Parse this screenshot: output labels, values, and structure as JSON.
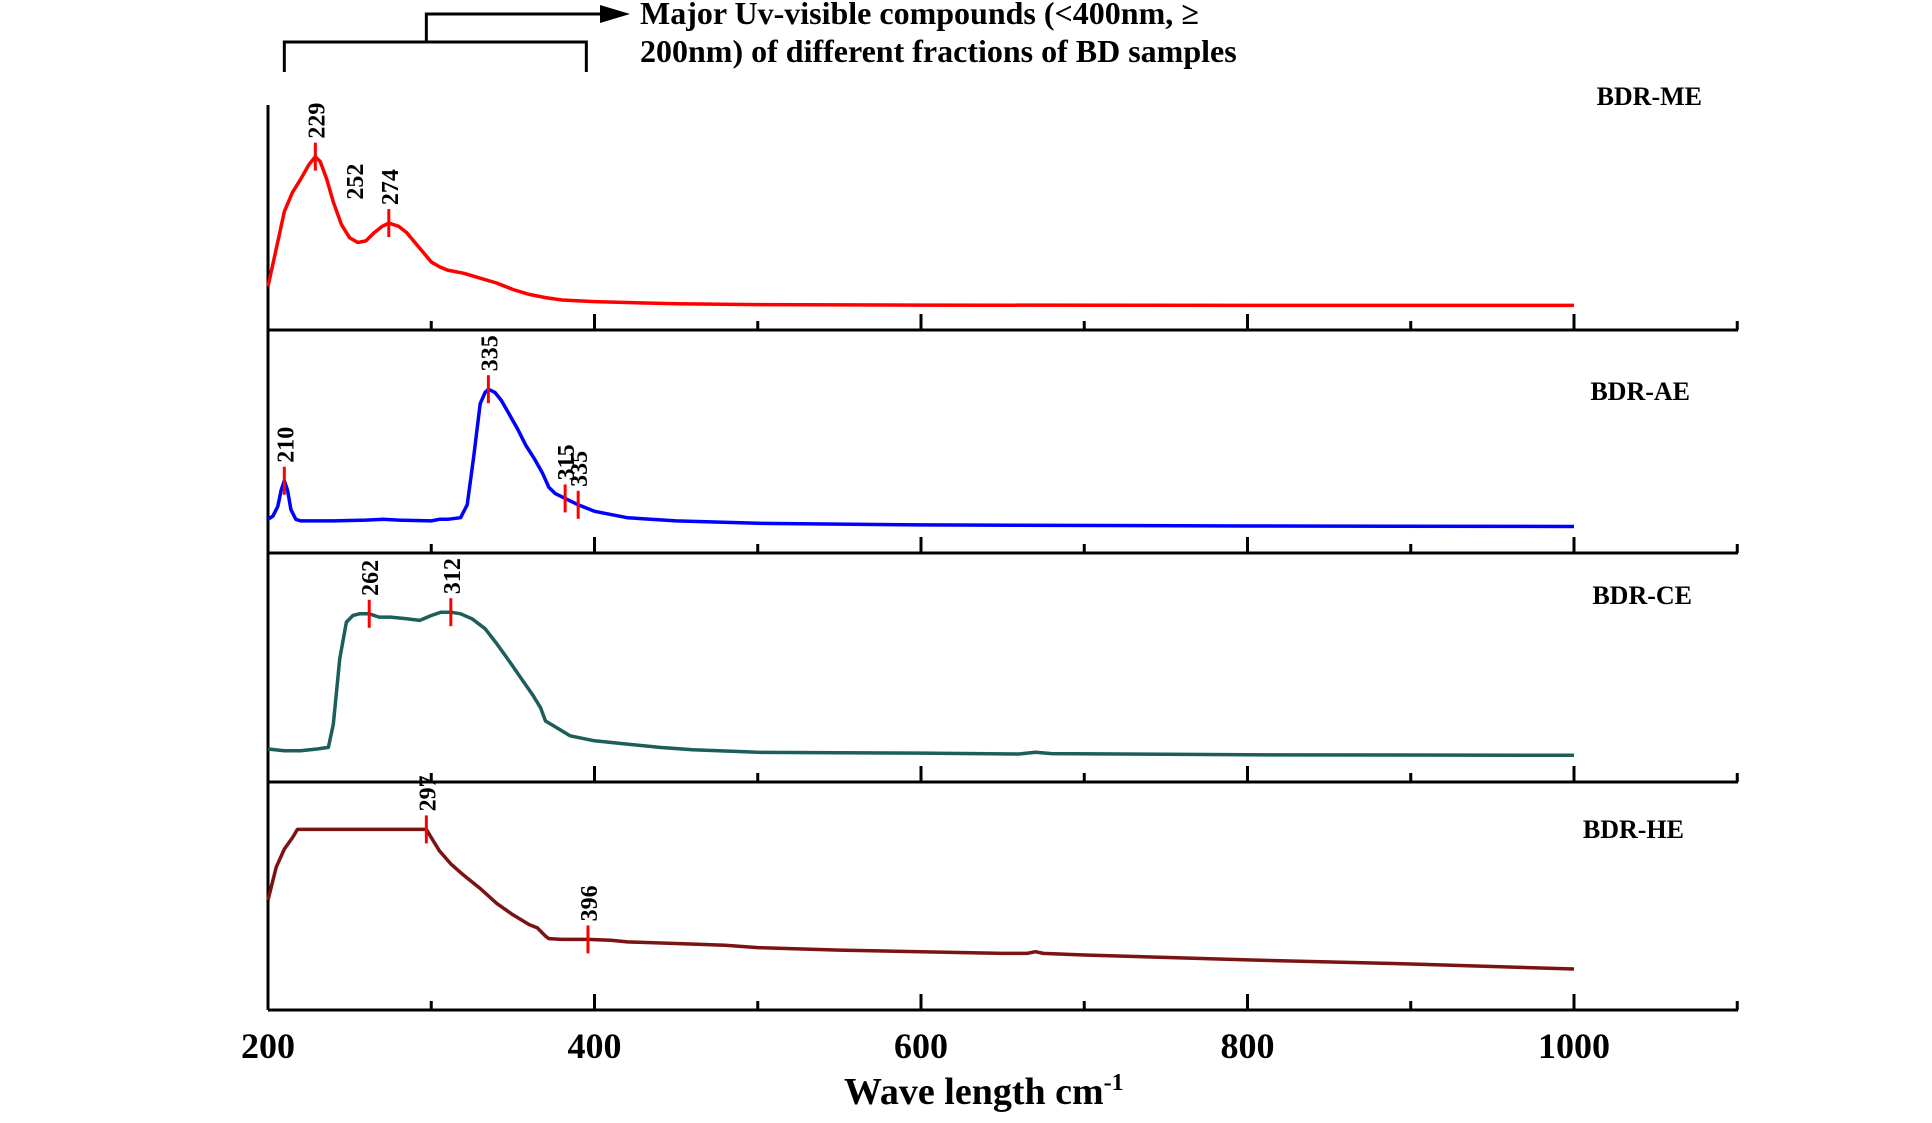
{
  "chart_data": {
    "type": "line",
    "title_lines": [
      "Major Uv-visible compounds (<400nm, ≥",
      "200nm) of different fractions of BD samples"
    ],
    "xlabel": "Wave length cm",
    "xlabel_superscript": "-1",
    "xlim": [
      200,
      1100
    ],
    "x_ticks": [
      200,
      400,
      600,
      800,
      1000
    ],
    "grid": false,
    "bracket_range": [
      210,
      395
    ],
    "series": [
      {
        "name": "BDR-ME",
        "color": "#ff0000",
        "points": [
          [
            200,
            0.12
          ],
          [
            205,
            0.35
          ],
          [
            210,
            0.58
          ],
          [
            215,
            0.7
          ],
          [
            220,
            0.78
          ],
          [
            225,
            0.87
          ],
          [
            229,
            0.92
          ],
          [
            232,
            0.89
          ],
          [
            236,
            0.78
          ],
          [
            240,
            0.64
          ],
          [
            245,
            0.5
          ],
          [
            250,
            0.42
          ],
          [
            255,
            0.39
          ],
          [
            260,
            0.4
          ],
          [
            265,
            0.45
          ],
          [
            270,
            0.49
          ],
          [
            274,
            0.51
          ],
          [
            280,
            0.49
          ],
          [
            285,
            0.45
          ],
          [
            290,
            0.39
          ],
          [
            295,
            0.33
          ],
          [
            300,
            0.27
          ],
          [
            305,
            0.24
          ],
          [
            310,
            0.22
          ],
          [
            320,
            0.2
          ],
          [
            330,
            0.17
          ],
          [
            340,
            0.14
          ],
          [
            350,
            0.1
          ],
          [
            360,
            0.07
          ],
          [
            370,
            0.05
          ],
          [
            380,
            0.035
          ],
          [
            400,
            0.025
          ],
          [
            450,
            0.012
          ],
          [
            500,
            0.007
          ],
          [
            600,
            0.004
          ],
          [
            800,
            0.002
          ],
          [
            1000,
            0.002
          ]
        ],
        "peaks": [
          {
            "x": 229,
            "label": "229",
            "marker": true,
            "big": false
          },
          {
            "x": 252,
            "label": "252",
            "marker": false,
            "big": true
          },
          {
            "x": 274,
            "label": "274",
            "marker": true,
            "big": false
          }
        ]
      },
      {
        "name": "BDR-AE",
        "color": "#0000ff",
        "points": [
          [
            200,
            0.06
          ],
          [
            203,
            0.08
          ],
          [
            206,
            0.14
          ],
          [
            208,
            0.24
          ],
          [
            210,
            0.3
          ],
          [
            212,
            0.24
          ],
          [
            214,
            0.12
          ],
          [
            217,
            0.06
          ],
          [
            220,
            0.05
          ],
          [
            240,
            0.05
          ],
          [
            260,
            0.055
          ],
          [
            270,
            0.06
          ],
          [
            280,
            0.055
          ],
          [
            300,
            0.05
          ],
          [
            305,
            0.06
          ],
          [
            310,
            0.06
          ],
          [
            318,
            0.07
          ],
          [
            322,
            0.15
          ],
          [
            326,
            0.45
          ],
          [
            330,
            0.78
          ],
          [
            333,
            0.85
          ],
          [
            335,
            0.87
          ],
          [
            339,
            0.85
          ],
          [
            343,
            0.8
          ],
          [
            348,
            0.71
          ],
          [
            353,
            0.62
          ],
          [
            358,
            0.52
          ],
          [
            363,
            0.44
          ],
          [
            368,
            0.35
          ],
          [
            372,
            0.26
          ],
          [
            376,
            0.22
          ],
          [
            382,
            0.19
          ],
          [
            390,
            0.15
          ],
          [
            400,
            0.11
          ],
          [
            420,
            0.07
          ],
          [
            450,
            0.05
          ],
          [
            500,
            0.035
          ],
          [
            600,
            0.025
          ],
          [
            800,
            0.018
          ],
          [
            1000,
            0.015
          ]
        ],
        "peaks": [
          {
            "x": 210,
            "label": "210",
            "marker": true,
            "big": false
          },
          {
            "x": 335,
            "label": "335",
            "marker": true,
            "big": false
          },
          {
            "x": 382,
            "label": "315",
            "marker": true,
            "big": false
          },
          {
            "x": 390,
            "label": "335",
            "marker": true,
            "big": false
          }
        ]
      },
      {
        "name": "BDR-CE",
        "color": "#1b5e5a",
        "points": [
          [
            200,
            0.05
          ],
          [
            210,
            0.04
          ],
          [
            220,
            0.04
          ],
          [
            230,
            0.05
          ],
          [
            237,
            0.06
          ],
          [
            240,
            0.2
          ],
          [
            244,
            0.6
          ],
          [
            248,
            0.82
          ],
          [
            252,
            0.86
          ],
          [
            256,
            0.87
          ],
          [
            262,
            0.87
          ],
          [
            268,
            0.85
          ],
          [
            275,
            0.85
          ],
          [
            285,
            0.84
          ],
          [
            293,
            0.83
          ],
          [
            300,
            0.86
          ],
          [
            306,
            0.88
          ],
          [
            312,
            0.88
          ],
          [
            318,
            0.87
          ],
          [
            325,
            0.84
          ],
          [
            333,
            0.78
          ],
          [
            340,
            0.69
          ],
          [
            348,
            0.58
          ],
          [
            355,
            0.48
          ],
          [
            362,
            0.38
          ],
          [
            367,
            0.3
          ],
          [
            370,
            0.22
          ],
          [
            375,
            0.19
          ],
          [
            385,
            0.13
          ],
          [
            400,
            0.1
          ],
          [
            420,
            0.08
          ],
          [
            440,
            0.06
          ],
          [
            460,
            0.045
          ],
          [
            500,
            0.03
          ],
          [
            600,
            0.025
          ],
          [
            660,
            0.02
          ],
          [
            670,
            0.03
          ],
          [
            680,
            0.022
          ],
          [
            800,
            0.015
          ],
          [
            1000,
            0.012
          ]
        ],
        "peaks": [
          {
            "x": 262,
            "label": "262",
            "marker": true,
            "big": false
          },
          {
            "x": 312,
            "label": "312",
            "marker": true,
            "big": false
          }
        ]
      },
      {
        "name": "BDR-HE",
        "color": "#7b1313",
        "points": [
          [
            200,
            0.52
          ],
          [
            205,
            0.72
          ],
          [
            210,
            0.83
          ],
          [
            215,
            0.9
          ],
          [
            218,
            0.95
          ],
          [
            225,
            0.95
          ],
          [
            290,
            0.95
          ],
          [
            297,
            0.95
          ],
          [
            300,
            0.9
          ],
          [
            305,
            0.82
          ],
          [
            312,
            0.74
          ],
          [
            320,
            0.67
          ],
          [
            330,
            0.59
          ],
          [
            340,
            0.5
          ],
          [
            350,
            0.43
          ],
          [
            360,
            0.37
          ],
          [
            365,
            0.35
          ],
          [
            370,
            0.3
          ],
          [
            372,
            0.285
          ],
          [
            380,
            0.28
          ],
          [
            396,
            0.28
          ],
          [
            410,
            0.275
          ],
          [
            420,
            0.265
          ],
          [
            450,
            0.255
          ],
          [
            480,
            0.245
          ],
          [
            500,
            0.23
          ],
          [
            550,
            0.215
          ],
          [
            600,
            0.205
          ],
          [
            650,
            0.195
          ],
          [
            665,
            0.195
          ],
          [
            670,
            0.205
          ],
          [
            675,
            0.195
          ],
          [
            700,
            0.185
          ],
          [
            800,
            0.155
          ],
          [
            900,
            0.13
          ],
          [
            1000,
            0.1
          ]
        ],
        "peaks": [
          {
            "x": 297,
            "label": "297",
            "marker": true,
            "big": false
          },
          {
            "x": 396,
            "label": "396",
            "marker": true,
            "big": false
          }
        ]
      }
    ]
  }
}
